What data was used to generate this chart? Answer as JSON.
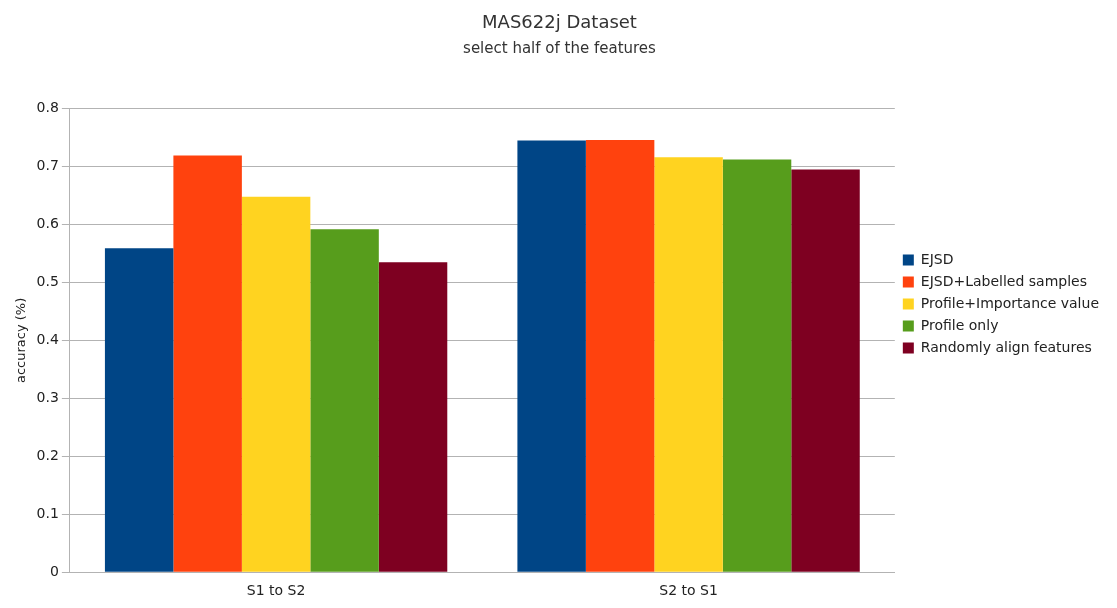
{
  "chart_data": {
    "type": "bar",
    "title": "MAS622j Dataset",
    "subtitle": "select half of the features",
    "ylabel": "accuracy (%)",
    "categories": [
      "S1 to S2",
      "S2 to S1"
    ],
    "series": [
      {
        "name": "EJSD",
        "color": "#004586",
        "values": [
          0.559,
          0.745
        ]
      },
      {
        "name": "EJSD+Labelled samples",
        "color": "#ff420e",
        "values": [
          0.719,
          0.746
        ]
      },
      {
        "name": "Profile+Importance value",
        "color": "#ffd320",
        "values": [
          0.648,
          0.716
        ]
      },
      {
        "name": "Profile only",
        "color": "#579d1c",
        "values": [
          0.592,
          0.712
        ]
      },
      {
        "name": "Randomly align features",
        "color": "#7e0021",
        "values": [
          0.535,
          0.695
        ]
      }
    ],
    "ylim": [
      0,
      0.8
    ],
    "yticks": [
      0,
      0.1,
      0.2,
      0.3,
      0.4,
      0.5,
      0.6,
      0.7,
      0.8
    ],
    "grid": "y",
    "legend": "right"
  }
}
